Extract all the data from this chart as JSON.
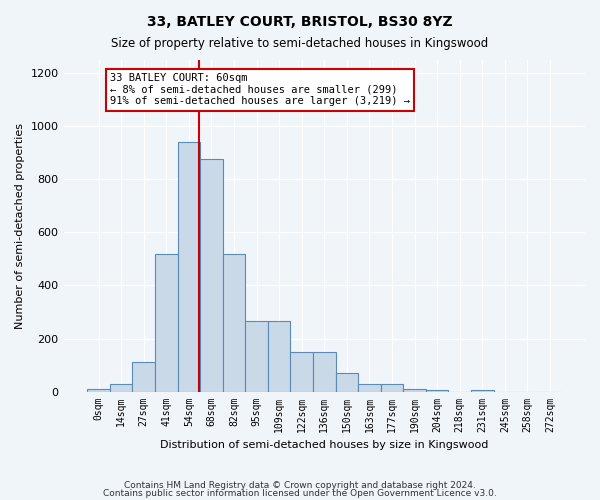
{
  "title1": "33, BATLEY COURT, BRISTOL, BS30 8YZ",
  "title2": "Size of property relative to semi-detached houses in Kingswood",
  "xlabel": "Distribution of semi-detached houses by size in Kingswood",
  "ylabel": "Number of semi-detached properties",
  "bar_labels": [
    "0sqm",
    "14sqm",
    "27sqm",
    "41sqm",
    "54sqm",
    "68sqm",
    "82sqm",
    "95sqm",
    "109sqm",
    "122sqm",
    "136sqm",
    "150sqm",
    "163sqm",
    "177sqm",
    "190sqm",
    "204sqm",
    "218sqm",
    "231sqm",
    "245sqm",
    "258sqm",
    "272sqm"
  ],
  "bar_values": [
    8,
    30,
    110,
    520,
    940,
    875,
    520,
    265,
    265,
    150,
    150,
    70,
    30,
    30,
    10,
    5,
    0,
    5,
    0,
    0,
    0
  ],
  "bar_color": "#c9d9e8",
  "bar_edge_color": "#5a8ab5",
  "property_line_x": 60,
  "property_size": "60sqm",
  "annotation_lines": [
    "33 BATLEY COURT: 60sqm",
    "← 8% of semi-detached houses are smaller (299)",
    "91% of semi-detached houses are larger (3,219) →"
  ],
  "annotation_box_color": "#ffffff",
  "annotation_box_edge_color": "#cc0000",
  "line_color": "#cc0000",
  "ylim": [
    0,
    1250
  ],
  "footer1": "Contains HM Land Registry data © Crown copyright and database right 2024.",
  "footer2": "Contains public sector information licensed under the Open Government Licence v3.0.",
  "bg_color": "#f0f5fa",
  "grid_color": "#ffffff"
}
